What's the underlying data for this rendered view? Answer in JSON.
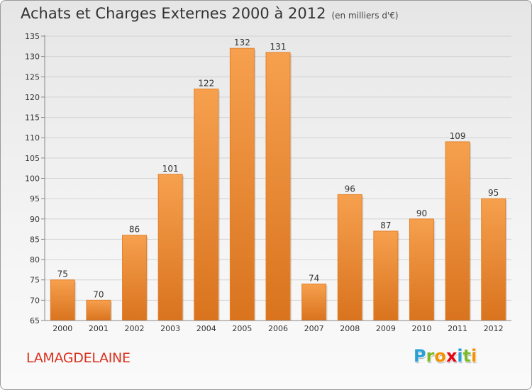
{
  "title": "Achats et Charges Externes 2000 à 2012",
  "subtitle": "(en milliers d'€)",
  "municipality": "LAMAGDELAINE",
  "logo": {
    "letters": [
      "P",
      "r",
      "o",
      "x",
      "i",
      "t",
      "i"
    ],
    "colors": [
      "#2a9fd6",
      "#7cb928",
      "#f39200",
      "#e30613",
      "#2a9fd6",
      "#7cb928",
      "#f39200"
    ]
  },
  "colors": {
    "bar": "#f0913a",
    "title": "#333333",
    "municipality": "#d9301e"
  },
  "chart_data": {
    "type": "bar",
    "categories": [
      "2000",
      "2001",
      "2002",
      "2003",
      "2004",
      "2005",
      "2006",
      "2007",
      "2008",
      "2009",
      "2010",
      "2011",
      "2012"
    ],
    "values": [
      75,
      70,
      86,
      101,
      122,
      132,
      131,
      74,
      96,
      87,
      90,
      109,
      95
    ],
    "title": "Achats et Charges Externes 2000 à 2012",
    "subtitle": "(en milliers d'€)",
    "ylim": [
      65,
      135
    ],
    "yticks": [
      65,
      70,
      75,
      80,
      85,
      90,
      95,
      100,
      105,
      110,
      115,
      120,
      125,
      130,
      135
    ],
    "grid": true,
    "data_labels": true
  }
}
